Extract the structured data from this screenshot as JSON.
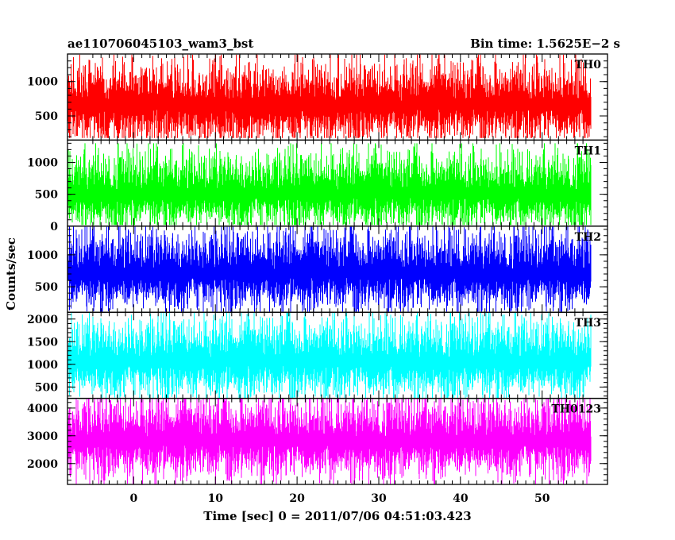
{
  "header": {
    "left_title": "ae110706045103_wam3_bst",
    "right_title": "Bin time: 1.5625E−2 s"
  },
  "chart_data": {
    "type": "line",
    "title": "ae110706045103_wam3_bst",
    "subtitle": "Bin time: 1.5625E−2 s",
    "xlabel": "Time [sec] 0 = 2011/07/06 04:51:03.423",
    "ylabel": "Counts/sec",
    "xlim": [
      -8.1,
      58
    ],
    "x_ticks": [
      0,
      10,
      20,
      30,
      40,
      50
    ],
    "data_x_range": [
      -8,
      56
    ],
    "grid": false,
    "legend": "none",
    "panels": [
      {
        "name": "TH0",
        "color": "#ff0000",
        "ylim": [
          150,
          1400
        ],
        "y_ticks": [
          500,
          1000
        ],
        "baseline_low": 180,
        "median": 650,
        "peak_max": 1390
      },
      {
        "name": "TH1",
        "color": "#00ff00",
        "ylim": [
          0,
          1350
        ],
        "y_ticks": [
          0,
          500,
          1000
        ],
        "baseline_low": 20,
        "median": 500,
        "peak_max": 1300
      },
      {
        "name": "TH2",
        "color": "#0000ff",
        "ylim": [
          100,
          1450
        ],
        "y_ticks": [
          500,
          1000
        ],
        "baseline_low": 110,
        "median": 700,
        "peak_max": 1440
      },
      {
        "name": "TH3",
        "color": "#00ffff",
        "ylim": [
          250,
          2150
        ],
        "y_ticks": [
          500,
          1000,
          1500,
          2000
        ],
        "baseline_low": 260,
        "median": 1050,
        "peak_max": 2140
      },
      {
        "name": "TH0123",
        "color": "#ff00ff",
        "ylim": [
          1250,
          4350
        ],
        "y_ticks": [
          2000,
          3000,
          4000
        ],
        "baseline_low": 1260,
        "median": 2800,
        "peak_max": 4330
      }
    ]
  }
}
